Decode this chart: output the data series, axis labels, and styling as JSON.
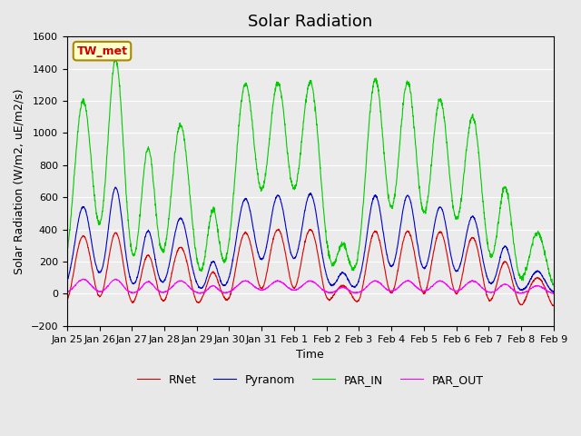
{
  "title": "Solar Radiation",
  "ylabel": "Solar Radiation (W/m2, uE/m2/s)",
  "xlabel": "Time",
  "ylim": [
    -200,
    1600
  ],
  "yticks": [
    -200,
    0,
    200,
    400,
    600,
    800,
    1000,
    1200,
    1400,
    1600
  ],
  "xtick_labels": [
    "Jan 25",
    "Jan 26",
    "Jan 27",
    "Jan 28",
    "Jan 29",
    "Jan 30",
    "Jan 31",
    "Feb 1",
    "Feb 2",
    "Feb 3",
    "Feb 4",
    "Feb 5",
    "Feb 6",
    "Feb 7",
    "Feb 8",
    "Feb 9"
  ],
  "station_label": "TW_met",
  "legend_entries": [
    "RNet",
    "Pyranom",
    "PAR_IN",
    "PAR_OUT"
  ],
  "line_colors": [
    "#dd0000",
    "#0000cc",
    "#00cc00",
    "#ff00ff"
  ],
  "n_days": 15,
  "points_per_day": 144,
  "title_fontsize": 13,
  "label_fontsize": 9,
  "tick_fontsize": 8
}
